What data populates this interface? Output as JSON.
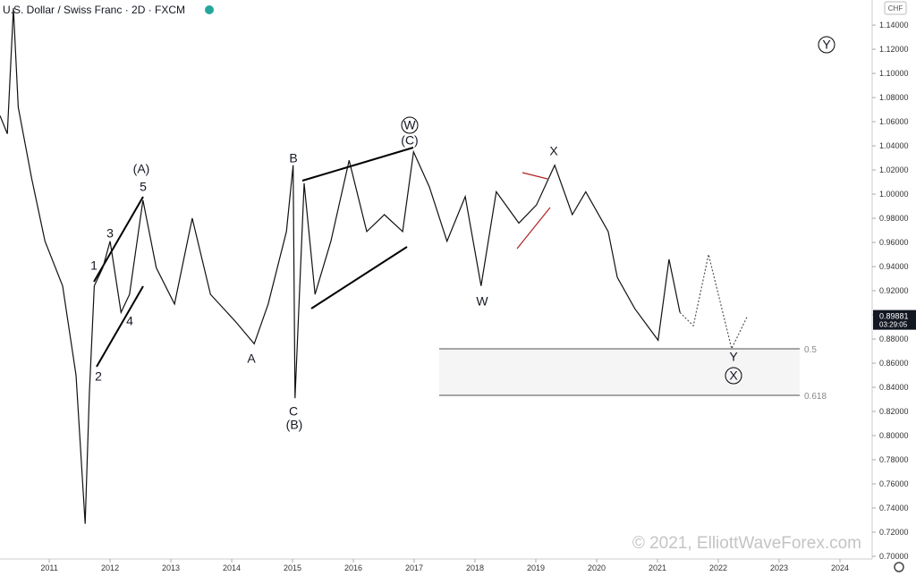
{
  "header": {
    "symbol": "U.S. Dollar / Swiss Franc · 2D · FXCM",
    "currency": "CHF"
  },
  "chart_data": {
    "type": "line",
    "color": "#111111",
    "grid": false,
    "x": [
      2010.19,
      2010.31,
      2010.41,
      2010.49,
      2010.71,
      2010.93,
      2011.22,
      2011.44,
      2011.59,
      2011.66,
      2011.74,
      2011.88,
      2012.0,
      2012.18,
      2012.32,
      2012.54,
      2012.76,
      2013.06,
      2013.35,
      2013.65,
      2014.07,
      2014.37,
      2014.6,
      2014.9,
      2015.01,
      2015.04,
      2015.19,
      2015.37,
      2015.63,
      2015.93,
      2016.22,
      2016.51,
      2016.81,
      2016.99,
      2017.25,
      2017.54,
      2017.84,
      2018.1,
      2018.35,
      2018.72,
      2019.01,
      2019.31,
      2019.6,
      2019.82,
      2020.19,
      2020.34,
      2020.63,
      2021.01,
      2021.19,
      2021.37
    ],
    "values": [
      1.065,
      1.05,
      1.154,
      1.072,
      1.013,
      0.961,
      0.924,
      0.85,
      0.727,
      0.835,
      0.924,
      0.939,
      0.961,
      0.902,
      0.917,
      0.995,
      0.939,
      0.909,
      0.98,
      0.917,
      0.894,
      0.876,
      0.909,
      0.969,
      1.024,
      0.831,
      1.009,
      0.917,
      0.961,
      1.028,
      0.969,
      0.983,
      0.969,
      1.035,
      1.006,
      0.961,
      0.998,
      0.924,
      1.002,
      0.976,
      0.991,
      1.024,
      0.983,
      1.002,
      0.969,
      0.931,
      0.905,
      0.879,
      0.946,
      0.902
    ],
    "projection_x": [
      2021.37,
      2021.59,
      2021.84,
      2022.22,
      2022.47
    ],
    "projection_values": [
      0.902,
      0.891,
      0.95,
      0.872,
      0.898
    ],
    "xlim": [
      2010.19,
      2024.53
    ],
    "ylim": [
      0.6837,
      1.1608
    ],
    "xticks": [
      2011,
      2012,
      2013,
      2014,
      2015,
      2016,
      2017,
      2018,
      2019,
      2020,
      2021,
      2022,
      2023,
      2024
    ],
    "yticks": [
      {
        "value": 0.7,
        "label": "0.70000"
      },
      {
        "value": 0.72,
        "label": "0.72000"
      },
      {
        "value": 0.74,
        "label": "0.74000"
      },
      {
        "value": 0.76,
        "label": "0.76000"
      },
      {
        "value": 0.78,
        "label": "0.78000"
      },
      {
        "value": 0.8,
        "label": "0.80000"
      },
      {
        "value": 0.82,
        "label": "0.82000"
      },
      {
        "value": 0.84,
        "label": "0.84000"
      },
      {
        "value": 0.86,
        "label": "0.86000"
      },
      {
        "value": 0.88,
        "label": "0.88000"
      },
      {
        "value": 0.9,
        "label": "0.90000"
      },
      {
        "value": 0.92,
        "label": "0.92000"
      },
      {
        "value": 0.94,
        "label": "0.94000"
      },
      {
        "value": 0.96,
        "label": "0.96000"
      },
      {
        "value": 0.98,
        "label": "0.98000"
      },
      {
        "value": 1.0,
        "label": "1.00000"
      },
      {
        "value": 1.02,
        "label": "1.02000"
      },
      {
        "value": 1.04,
        "label": "1.04000"
      },
      {
        "value": 1.06,
        "label": "1.06000"
      },
      {
        "value": 1.08,
        "label": "1.08000"
      },
      {
        "value": 1.1,
        "label": "1.10000"
      },
      {
        "value": 1.12,
        "label": "1.12000"
      },
      {
        "value": 1.14,
        "label": "1.14000"
      }
    ],
    "last_price": 0.89881,
    "countdown": "03:29:05",
    "fib_labels": [
      "0.5",
      "0.618"
    ],
    "annotations": [
      "1",
      "2",
      "3",
      "4",
      "5",
      "(A)",
      "A",
      "B",
      "C",
      "(B)",
      "(C)",
      "W",
      "W",
      "X",
      "Y",
      "X",
      "Y"
    ],
    "watermark": "© 2021, ElliottWaveForex.com"
  }
}
